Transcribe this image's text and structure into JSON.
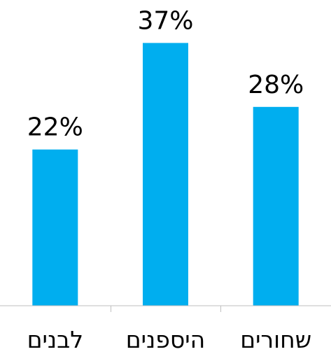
{
  "chart_data": {
    "type": "bar",
    "categories": [
      "לבנים",
      "היספנים",
      "שחורים"
    ],
    "values": [
      22,
      37,
      28
    ],
    "data_labels": [
      "22%",
      "37%",
      "28%"
    ],
    "title": "",
    "xlabel": "",
    "ylabel": "",
    "ylim": [
      0,
      40
    ],
    "grid": false,
    "legend": "none",
    "colors": {
      "bar": "#00AEEF",
      "axis": "#BFBFBF",
      "text": "#000000"
    }
  }
}
